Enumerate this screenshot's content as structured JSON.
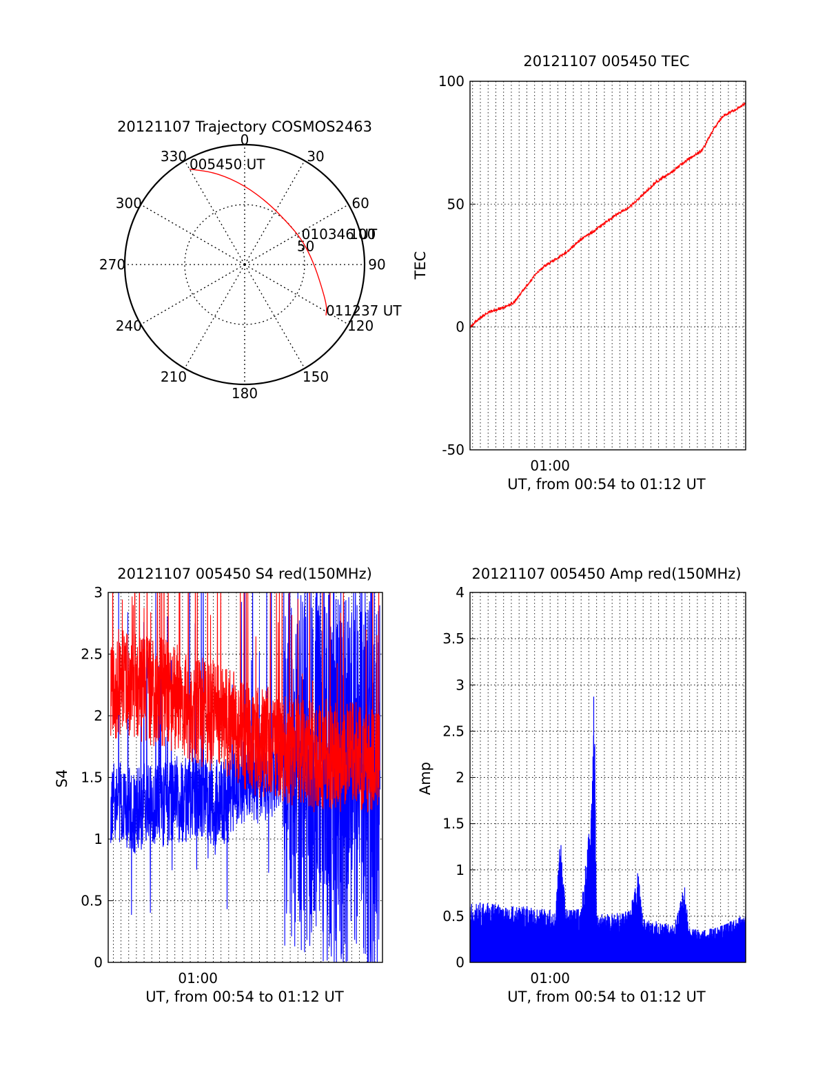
{
  "chart_data": [
    {
      "id": "trajectory",
      "type": "polar-trajectory",
      "title": "20121107 Trajectory COSMOS2463",
      "azimuth_labels": [
        "0",
        "30",
        "60",
        "90",
        "120",
        "150",
        "180",
        "210",
        "240",
        "270",
        "300",
        "330"
      ],
      "radius_labels": [
        "50",
        "100"
      ],
      "radius_max": 100,
      "grid": true,
      "colors": {
        "track": "#ff0000",
        "grid": "#000000"
      },
      "track": [
        {
          "az": 330,
          "r": 92
        },
        {
          "az": 343,
          "r": 80
        },
        {
          "az": 0,
          "r": 66
        },
        {
          "az": 21,
          "r": 55
        },
        {
          "az": 45,
          "r": 50
        },
        {
          "az": 66,
          "r": 52
        },
        {
          "az": 87,
          "r": 57
        },
        {
          "az": 105,
          "r": 66
        },
        {
          "az": 117,
          "r": 77
        },
        {
          "az": 122,
          "r": 80
        }
      ],
      "annotations": [
        {
          "text": "005450 UT",
          "az": 330,
          "r": 92
        },
        {
          "text": "010346 UT",
          "az": 66,
          "r": 52
        },
        {
          "text": "011237 UT",
          "az": 122,
          "r": 80
        }
      ]
    },
    {
      "id": "tec",
      "type": "line",
      "title": "20121107 005450 TEC",
      "xlabel": "UT, from 00:54 to 01:12 UT",
      "ylabel": "TEC",
      "xlim": [
        "00:54:50",
        "01:12:37"
      ],
      "ylim": [
        -50,
        100
      ],
      "yticks": [
        -50,
        0,
        50,
        100
      ],
      "xticks": [
        {
          "t": "01:00",
          "label": "01:00"
        }
      ],
      "grid": true,
      "series": [
        {
          "color": "#ff0000",
          "points": [
            [
              "00:54:50",
              0
            ],
            [
              "00:55:20",
              3
            ],
            [
              "00:56:00",
              6
            ],
            [
              "00:57:00",
              8
            ],
            [
              "00:57:40",
              10
            ],
            [
              "00:58:30",
              17
            ],
            [
              "00:59:10",
              22
            ],
            [
              "00:59:40",
              25
            ],
            [
              "01:00:30",
              28
            ],
            [
              "01:01:10",
              31
            ],
            [
              "01:01:50",
              35
            ],
            [
              "01:02:50",
              39
            ],
            [
              "01:03:40",
              43
            ],
            [
              "01:04:20",
              46
            ],
            [
              "01:05:10",
              49
            ],
            [
              "01:06:00",
              54
            ],
            [
              "01:06:50",
              59
            ],
            [
              "01:07:50",
              63
            ],
            [
              "01:08:50",
              68
            ],
            [
              "01:09:50",
              72
            ],
            [
              "01:10:30",
              80
            ],
            [
              "01:11:10",
              86
            ],
            [
              "01:11:50",
              88
            ],
            [
              "01:12:37",
              91
            ]
          ]
        }
      ]
    },
    {
      "id": "s4",
      "type": "line",
      "title": "20121107 005450 S4 red(150MHz)",
      "xlabel": "UT, from 00:54 to 01:12 UT",
      "ylabel": "S4",
      "xlim": [
        "00:54:10",
        "01:12:00"
      ],
      "ylim": [
        0,
        3
      ],
      "yticks": [
        0,
        0.5,
        1,
        1.5,
        2,
        2.5,
        3
      ],
      "xticks": [
        {
          "t": "01:00",
          "label": "01:00"
        }
      ],
      "grid": true,
      "series": [
        {
          "color": "#0000ff",
          "points": [
            [
              "00:54:20",
              1.25
            ],
            [
              "00:55:00",
              1.3
            ],
            [
              "00:55:50",
              1.22
            ],
            [
              "00:56:40",
              1.28
            ],
            [
              "00:57:30",
              1.25
            ],
            [
              "00:58:20",
              1.3
            ],
            [
              "00:59:10",
              1.32
            ],
            [
              "01:00:00",
              1.35
            ],
            [
              "01:00:50",
              1.3
            ],
            [
              "01:01:40",
              1.28
            ],
            [
              "01:02:30",
              1.4
            ],
            [
              "01:03:20",
              1.5
            ],
            [
              "01:04:10",
              1.45
            ],
            [
              "01:05:00",
              1.55
            ],
            [
              "01:05:50",
              1.75
            ],
            [
              "01:06:40",
              1.7
            ],
            [
              "01:07:30",
              1.55
            ],
            [
              "01:08:20",
              1.6
            ],
            [
              "01:09:10",
              1.5
            ],
            [
              "01:10:00",
              1.5
            ],
            [
              "01:11:00",
              1.5
            ],
            [
              "01:11:50",
              1.5
            ]
          ]
        },
        {
          "color": "#ff0000",
          "points": [
            [
              "00:54:20",
              2.2
            ],
            [
              "00:55:00",
              2.3
            ],
            [
              "00:55:50",
              2.25
            ],
            [
              "00:56:40",
              2.2
            ],
            [
              "00:57:30",
              2.2
            ],
            [
              "00:58:20",
              2.15
            ],
            [
              "00:59:10",
              2.1
            ],
            [
              "01:00:00",
              2.05
            ],
            [
              "01:00:50",
              2.0
            ],
            [
              "01:01:40",
              1.95
            ],
            [
              "01:02:30",
              1.9
            ],
            [
              "01:03:20",
              1.8
            ],
            [
              "01:04:10",
              1.78
            ],
            [
              "01:05:00",
              1.8
            ],
            [
              "01:05:50",
              1.7
            ],
            [
              "01:06:40",
              1.75
            ],
            [
              "01:07:30",
              1.65
            ],
            [
              "01:08:20",
              1.7
            ],
            [
              "01:09:10",
              1.65
            ],
            [
              "01:10:00",
              1.7
            ],
            [
              "01:11:00",
              1.65
            ],
            [
              "01:11:50",
              1.7
            ]
          ]
        }
      ]
    },
    {
      "id": "amp",
      "type": "line",
      "title": "20121107 005450 Amp red(150MHz)",
      "xlabel": "UT, from 00:54 to 01:12 UT",
      "ylabel": "Amp",
      "xlim": [
        "00:54:50",
        "01:12:37"
      ],
      "ylim": [
        0,
        4
      ],
      "yticks": [
        0,
        0.5,
        1,
        1.5,
        2,
        2.5,
        3,
        3.5,
        4
      ],
      "xticks": [
        {
          "t": "01:00",
          "label": "01:00"
        }
      ],
      "grid": true,
      "series": [
        {
          "color": "#0000ff",
          "points": [
            [
              "00:54:50",
              0.6
            ],
            [
              "00:55:30",
              0.62
            ],
            [
              "00:56:30",
              0.6
            ],
            [
              "00:57:30",
              0.58
            ],
            [
              "00:58:30",
              0.58
            ],
            [
              "00:59:30",
              0.55
            ],
            [
              "01:00:20",
              0.55
            ],
            [
              "01:00:40",
              1.3
            ],
            [
              "01:01:00",
              0.55
            ],
            [
              "01:02:00",
              0.55
            ],
            [
              "01:02:40",
              1.7
            ],
            [
              "01:02:50",
              3.0
            ],
            [
              "01:03:00",
              0.5
            ],
            [
              "01:04:00",
              0.5
            ],
            [
              "01:05:10",
              0.55
            ],
            [
              "01:05:40",
              0.95
            ],
            [
              "01:06:00",
              0.45
            ],
            [
              "01:07:00",
              0.42
            ],
            [
              "01:08:00",
              0.38
            ],
            [
              "01:08:40",
              0.8
            ],
            [
              "01:09:00",
              0.35
            ],
            [
              "01:10:00",
              0.33
            ],
            [
              "01:11:00",
              0.38
            ],
            [
              "01:12:00",
              0.45
            ],
            [
              "01:12:37",
              0.5
            ]
          ]
        }
      ]
    }
  ]
}
